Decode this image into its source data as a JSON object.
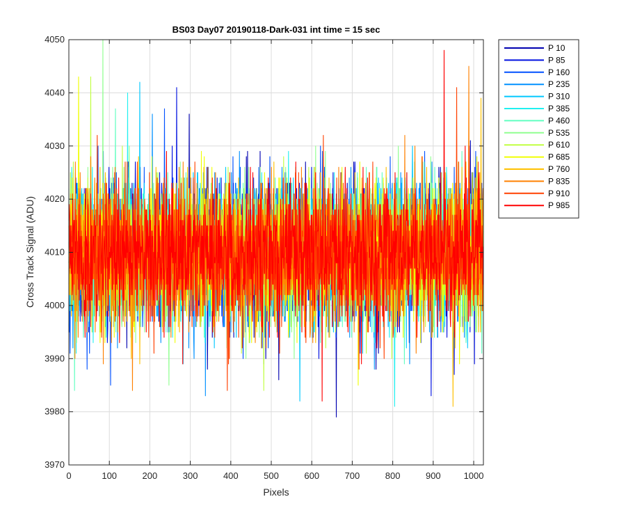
{
  "chart_data": {
    "type": "line",
    "title": "BS03 Day07 20190118-Dark-031 int time = 15 sec",
    "xlabel": "Pixels",
    "ylabel": "Cross Track Signal (ADU)",
    "xlim": [
      0,
      1024
    ],
    "ylim": [
      3970,
      4050
    ],
    "xticks": [
      0,
      100,
      200,
      300,
      400,
      500,
      600,
      700,
      800,
      900,
      1000
    ],
    "yticks": [
      3970,
      3980,
      3990,
      4000,
      4010,
      4020,
      4030,
      4040,
      4050
    ],
    "grid": true,
    "legend_position": "outside-top-right",
    "points_per_series": 1024,
    "series": [
      {
        "name": "P 10",
        "color": "#0000b0",
        "mean": 4010,
        "low": 3979,
        "high": 4036
      },
      {
        "name": "P 85",
        "color": "#0010e0",
        "mean": 4010,
        "low": 3983,
        "high": 4041
      },
      {
        "name": "P 160",
        "color": "#0050ff",
        "mean": 4010,
        "low": 3985,
        "high": 4037
      },
      {
        "name": "P 235",
        "color": "#0090ff",
        "mean": 4010,
        "low": 3983,
        "high": 4036
      },
      {
        "name": "P 310",
        "color": "#00c8ff",
        "mean": 4010,
        "low": 3982,
        "high": 4042
      },
      {
        "name": "P 385",
        "color": "#20f0f0",
        "mean": 4010,
        "low": 3981,
        "high": 4040
      },
      {
        "name": "P 460",
        "color": "#60ffc0",
        "mean": 4010,
        "low": 3984,
        "high": 4037
      },
      {
        "name": "P 535",
        "color": "#90ff90",
        "mean": 4010,
        "low": 3985,
        "high": 4050
      },
      {
        "name": "P 610",
        "color": "#c0ff40",
        "mean": 4010,
        "low": 3984,
        "high": 4043
      },
      {
        "name": "P 685",
        "color": "#f0ff00",
        "mean": 4010,
        "low": 3985,
        "high": 4043
      },
      {
        "name": "P 760",
        "color": "#ffc000",
        "mean": 4010,
        "low": 3981,
        "high": 4039
      },
      {
        "name": "P 835",
        "color": "#ff8000",
        "mean": 4010,
        "low": 3984,
        "high": 4045
      },
      {
        "name": "P 910",
        "color": "#ff4000",
        "mean": 4010,
        "low": 3984,
        "high": 4041
      },
      {
        "name": "P 985",
        "color": "#ff0000",
        "mean": 4010,
        "low": 3982,
        "high": 4048
      }
    ]
  }
}
